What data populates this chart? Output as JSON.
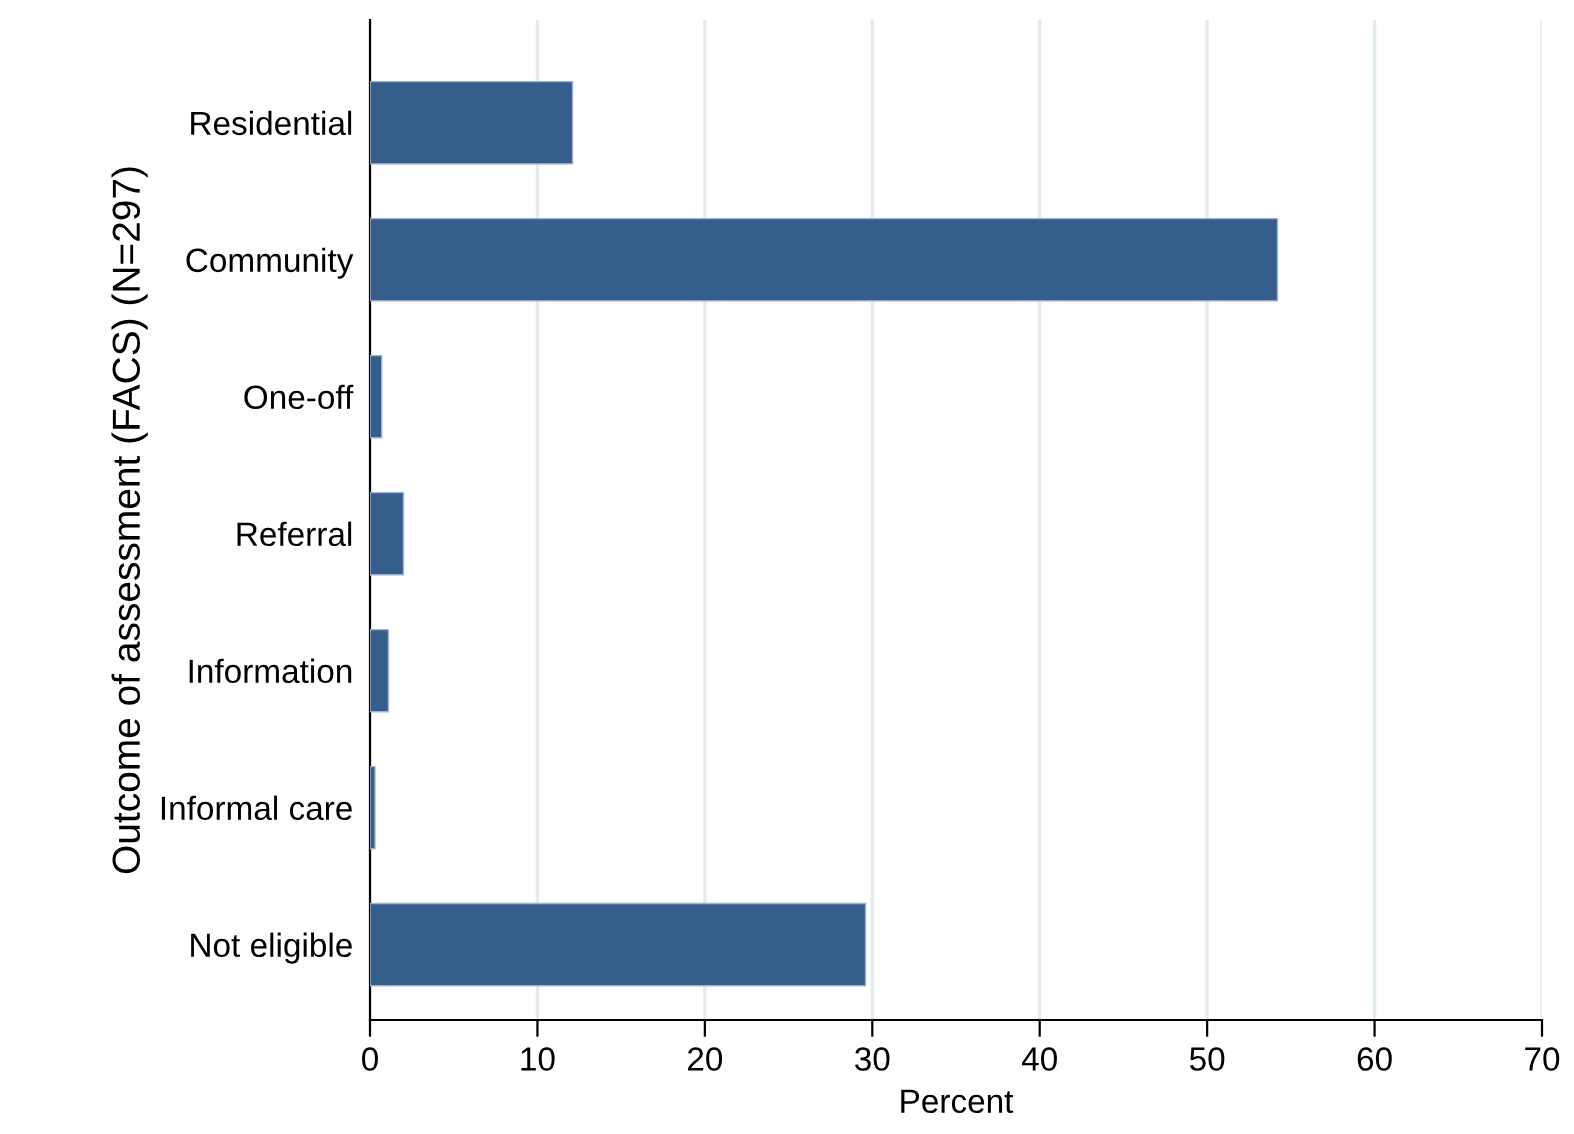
{
  "chart_data": {
    "type": "bar",
    "orientation": "horizontal",
    "xlabel": "Percent",
    "ylabel": "Outcome of assessment (FACS) (N=297)",
    "categories": [
      "Residential",
      "Community",
      "One-off",
      "Referral",
      "Information",
      "Informal care",
      "Not eligible"
    ],
    "values": [
      12.1,
      54.2,
      0.7,
      2.0,
      1.1,
      0.3,
      29.6
    ],
    "color": "#355e8d",
    "xlim": [
      0,
      70
    ],
    "xticks": [
      0,
      10,
      20,
      30,
      40,
      50,
      60,
      70
    ],
    "grid": "x",
    "legend": false
  }
}
